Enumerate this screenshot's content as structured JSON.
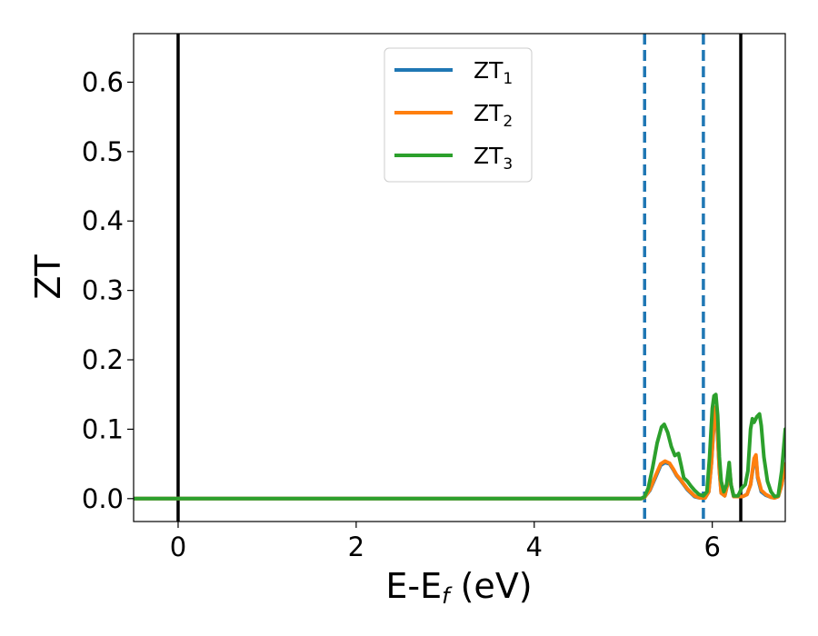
{
  "chart_data": {
    "type": "line",
    "title": "",
    "xlabel": {
      "main": "E-E",
      "sub": "f",
      "unit": " (eV)"
    },
    "ylabel": "ZT",
    "xlim": [
      -0.5,
      6.82
    ],
    "ylim": [
      -0.033,
      0.67
    ],
    "xticks": [
      0,
      2,
      4,
      6
    ],
    "xtick_labels": [
      "0",
      "2",
      "4",
      "6"
    ],
    "yticks": [
      0.0,
      0.1,
      0.2,
      0.3,
      0.4,
      0.5,
      0.6
    ],
    "ytick_labels": [
      "0.0",
      "0.1",
      "0.2",
      "0.3",
      "0.4",
      "0.5",
      "0.6"
    ],
    "grid": false,
    "legend_position": "top-center",
    "vlines": [
      {
        "x": 0.0,
        "style": "solid",
        "color": "#000000"
      },
      {
        "x": 6.32,
        "style": "solid",
        "color": "#000000"
      },
      {
        "x": 5.24,
        "style": "dashed",
        "color": "#1f77b4"
      },
      {
        "x": 5.9,
        "style": "dashed",
        "color": "#1f77b4"
      }
    ],
    "series": [
      {
        "name": "ZT",
        "sub": "1",
        "color": "#1f77b4",
        "points": [
          [
            -0.5,
            0
          ],
          [
            5.2,
            0
          ],
          [
            5.24,
            0.002
          ],
          [
            5.3,
            0.012
          ],
          [
            5.36,
            0.03
          ],
          [
            5.42,
            0.048
          ],
          [
            5.47,
            0.052
          ],
          [
            5.52,
            0.05
          ],
          [
            5.56,
            0.042
          ],
          [
            5.6,
            0.033
          ],
          [
            5.64,
            0.027
          ],
          [
            5.68,
            0.02
          ],
          [
            5.72,
            0.013
          ],
          [
            5.76,
            0.008
          ],
          [
            5.8,
            0.003
          ],
          [
            5.86,
            0.001
          ],
          [
            5.92,
            0.001
          ],
          [
            5.96,
            0.01
          ],
          [
            5.99,
            0.05
          ],
          [
            6.02,
            0.11
          ],
          [
            6.04,
            0.128
          ],
          [
            6.06,
            0.09
          ],
          [
            6.08,
            0.04
          ],
          [
            6.1,
            0.008
          ],
          [
            6.14,
            0.004
          ],
          [
            6.17,
            0.02
          ],
          [
            6.19,
            0.045
          ],
          [
            6.21,
            0.02
          ],
          [
            6.24,
            0.003
          ],
          [
            6.28,
            0.003
          ],
          [
            6.34,
            0.003
          ],
          [
            6.39,
            0.006
          ],
          [
            6.43,
            0.02
          ],
          [
            6.47,
            0.055
          ],
          [
            6.49,
            0.06
          ],
          [
            6.51,
            0.03
          ],
          [
            6.55,
            0.01
          ],
          [
            6.6,
            0.005
          ],
          [
            6.66,
            0.002
          ],
          [
            6.7,
            0.001
          ],
          [
            6.74,
            0.003
          ],
          [
            6.78,
            0.02
          ],
          [
            6.82,
            0.05
          ]
        ]
      },
      {
        "name": "ZT",
        "sub": "2",
        "color": "#ff7f0e",
        "points": [
          [
            -0.5,
            0
          ],
          [
            5.2,
            0
          ],
          [
            5.24,
            0.002
          ],
          [
            5.3,
            0.013
          ],
          [
            5.36,
            0.032
          ],
          [
            5.42,
            0.05
          ],
          [
            5.47,
            0.054
          ],
          [
            5.52,
            0.051
          ],
          [
            5.56,
            0.043
          ],
          [
            5.6,
            0.034
          ],
          [
            5.64,
            0.028
          ],
          [
            5.68,
            0.021
          ],
          [
            5.72,
            0.014
          ],
          [
            5.76,
            0.009
          ],
          [
            5.8,
            0.004
          ],
          [
            5.86,
            0.001
          ],
          [
            5.92,
            0.001
          ],
          [
            5.96,
            0.01
          ],
          [
            5.99,
            0.05
          ],
          [
            6.02,
            0.115
          ],
          [
            6.04,
            0.132
          ],
          [
            6.06,
            0.092
          ],
          [
            6.08,
            0.04
          ],
          [
            6.1,
            0.008
          ],
          [
            6.14,
            0.004
          ],
          [
            6.17,
            0.02
          ],
          [
            6.19,
            0.047
          ],
          [
            6.21,
            0.02
          ],
          [
            6.24,
            0.003
          ],
          [
            6.28,
            0.003
          ],
          [
            6.34,
            0.003
          ],
          [
            6.39,
            0.006
          ],
          [
            6.43,
            0.02
          ],
          [
            6.47,
            0.058
          ],
          [
            6.49,
            0.063
          ],
          [
            6.51,
            0.032
          ],
          [
            6.55,
            0.012
          ],
          [
            6.6,
            0.006
          ],
          [
            6.66,
            0.002
          ],
          [
            6.7,
            0.001
          ],
          [
            6.74,
            0.003
          ],
          [
            6.78,
            0.02
          ],
          [
            6.82,
            0.05
          ]
        ]
      },
      {
        "name": "ZT",
        "sub": "3",
        "color": "#2ca02c",
        "points": [
          [
            -0.5,
            0
          ],
          [
            5.2,
            0
          ],
          [
            5.24,
            0.003
          ],
          [
            5.28,
            0.015
          ],
          [
            5.33,
            0.045
          ],
          [
            5.38,
            0.08
          ],
          [
            5.43,
            0.103
          ],
          [
            5.46,
            0.107
          ],
          [
            5.5,
            0.095
          ],
          [
            5.54,
            0.075
          ],
          [
            5.58,
            0.062
          ],
          [
            5.62,
            0.065
          ],
          [
            5.65,
            0.048
          ],
          [
            5.68,
            0.03
          ],
          [
            5.72,
            0.025
          ],
          [
            5.76,
            0.018
          ],
          [
            5.8,
            0.012
          ],
          [
            5.85,
            0.006
          ],
          [
            5.9,
            0.004
          ],
          [
            5.94,
            0.01
          ],
          [
            5.97,
            0.06
          ],
          [
            6.0,
            0.13
          ],
          [
            6.02,
            0.148
          ],
          [
            6.04,
            0.15
          ],
          [
            6.06,
            0.12
          ],
          [
            6.08,
            0.06
          ],
          [
            6.1,
            0.025
          ],
          [
            6.13,
            0.01
          ],
          [
            6.16,
            0.02
          ],
          [
            6.19,
            0.052
          ],
          [
            6.21,
            0.02
          ],
          [
            6.24,
            0.004
          ],
          [
            6.29,
            0.004
          ],
          [
            6.33,
            0.015
          ],
          [
            6.37,
            0.02
          ],
          [
            6.4,
            0.04
          ],
          [
            6.43,
            0.1
          ],
          [
            6.45,
            0.115
          ],
          [
            6.47,
            0.11
          ],
          [
            6.5,
            0.118
          ],
          [
            6.53,
            0.122
          ],
          [
            6.55,
            0.105
          ],
          [
            6.58,
            0.06
          ],
          [
            6.62,
            0.025
          ],
          [
            6.66,
            0.01
          ],
          [
            6.7,
            0.003
          ],
          [
            6.74,
            0.004
          ],
          [
            6.78,
            0.04
          ],
          [
            6.82,
            0.1
          ]
        ]
      }
    ]
  }
}
